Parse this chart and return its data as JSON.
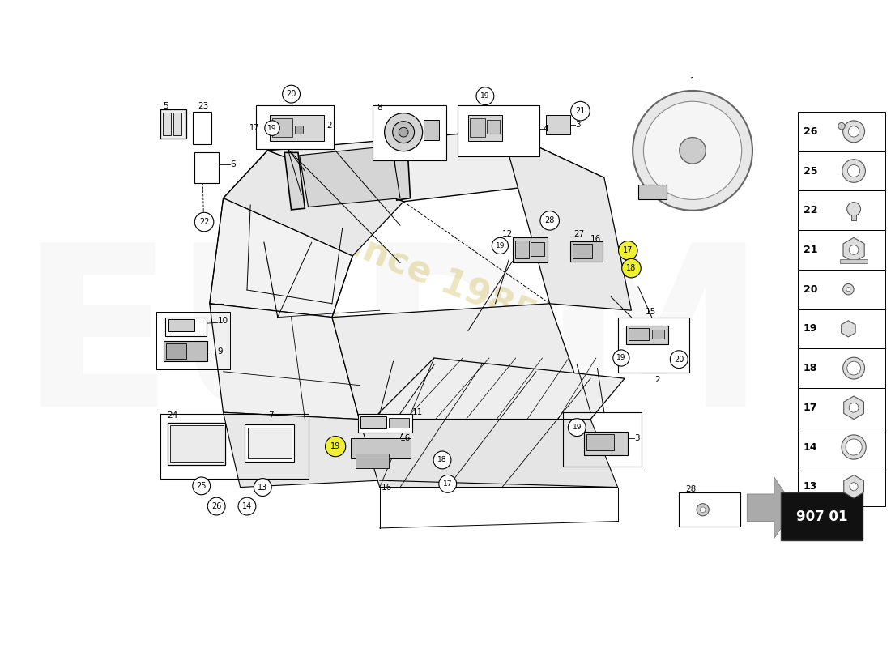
{
  "bg_color": "#ffffff",
  "page_number": "907 01",
  "watermark_color": "#c8a830",
  "parts_table": [
    {
      "num": 26,
      "type": "screw_washer"
    },
    {
      "num": 25,
      "type": "washer_flat"
    },
    {
      "num": 22,
      "type": "screw_pan"
    },
    {
      "num": 21,
      "type": "nut_flange"
    },
    {
      "num": 20,
      "type": "bolt_eye"
    },
    {
      "num": 19,
      "type": "bolt_hex"
    },
    {
      "num": 18,
      "type": "washer_spring"
    },
    {
      "num": 17,
      "type": "nut_hex"
    },
    {
      "num": 14,
      "type": "washer_thin"
    },
    {
      "num": 13,
      "type": "nut_nyloc"
    }
  ],
  "highlight_yellow": [
    "17",
    "18",
    "19",
    "13"
  ],
  "arrow_color": "#888888"
}
